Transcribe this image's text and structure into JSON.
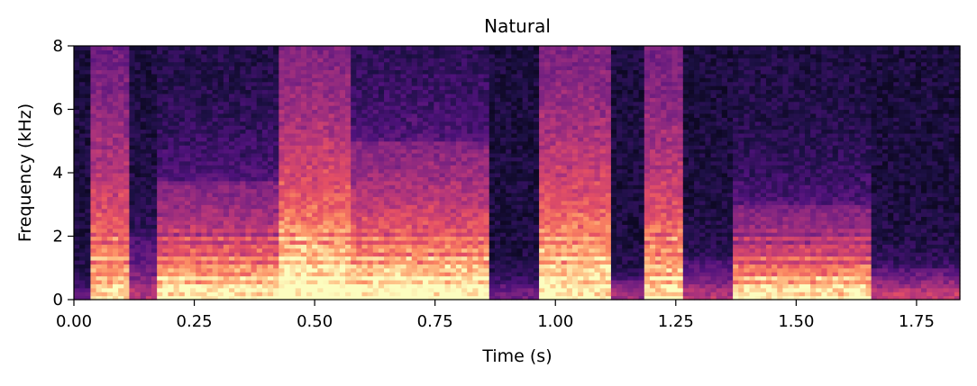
{
  "chart_data": {
    "type": "heatmap",
    "title": "Natural",
    "xlabel": "Time (s)",
    "ylabel": "Frequency (kHz)",
    "xlim": [
      0,
      1.84
    ],
    "ylim": [
      0,
      8
    ],
    "xticks": [
      {
        "value": 0.0,
        "label": "0.00"
      },
      {
        "value": 0.25,
        "label": "0.25"
      },
      {
        "value": 0.5,
        "label": "0.50"
      },
      {
        "value": 0.75,
        "label": "0.75"
      },
      {
        "value": 1.0,
        "label": "1.00"
      },
      {
        "value": 1.25,
        "label": "1.25"
      },
      {
        "value": 1.5,
        "label": "1.50"
      },
      {
        "value": 1.75,
        "label": "1.75"
      }
    ],
    "yticks": [
      {
        "value": 0,
        "label": "0"
      },
      {
        "value": 2,
        "label": "2"
      },
      {
        "value": 4,
        "label": "4"
      },
      {
        "value": 6,
        "label": "6"
      },
      {
        "value": 8,
        "label": "8"
      }
    ],
    "colormap": "magma",
    "grid": false,
    "segments": [
      {
        "t0": 0.0,
        "t1": 0.04,
        "fmax": 0.3,
        "level": 0.15
      },
      {
        "t0": 0.04,
        "t1": 0.12,
        "fmax": 8.0,
        "level": 0.75
      },
      {
        "t0": 0.12,
        "t1": 0.17,
        "fmax": 2.0,
        "level": 0.35
      },
      {
        "t0": 0.17,
        "t1": 0.42,
        "fmax": 3.8,
        "level": 0.82
      },
      {
        "t0": 0.42,
        "t1": 0.57,
        "fmax": 8.0,
        "level": 0.9
      },
      {
        "t0": 0.57,
        "t1": 0.86,
        "fmax": 5.0,
        "level": 0.88
      },
      {
        "t0": 0.86,
        "t1": 0.97,
        "fmax": 0.5,
        "level": 0.2
      },
      {
        "t0": 0.97,
        "t1": 1.11,
        "fmax": 8.0,
        "level": 0.85
      },
      {
        "t0": 1.11,
        "t1": 1.18,
        "fmax": 0.6,
        "level": 0.3
      },
      {
        "t0": 1.18,
        "t1": 1.27,
        "fmax": 8.0,
        "level": 0.78
      },
      {
        "t0": 1.27,
        "t1": 1.37,
        "fmax": 1.2,
        "level": 0.35
      },
      {
        "t0": 1.37,
        "t1": 1.66,
        "fmax": 3.0,
        "level": 0.8
      },
      {
        "t0": 1.66,
        "t1": 1.84,
        "fmax": 1.0,
        "level": 0.4
      }
    ]
  }
}
